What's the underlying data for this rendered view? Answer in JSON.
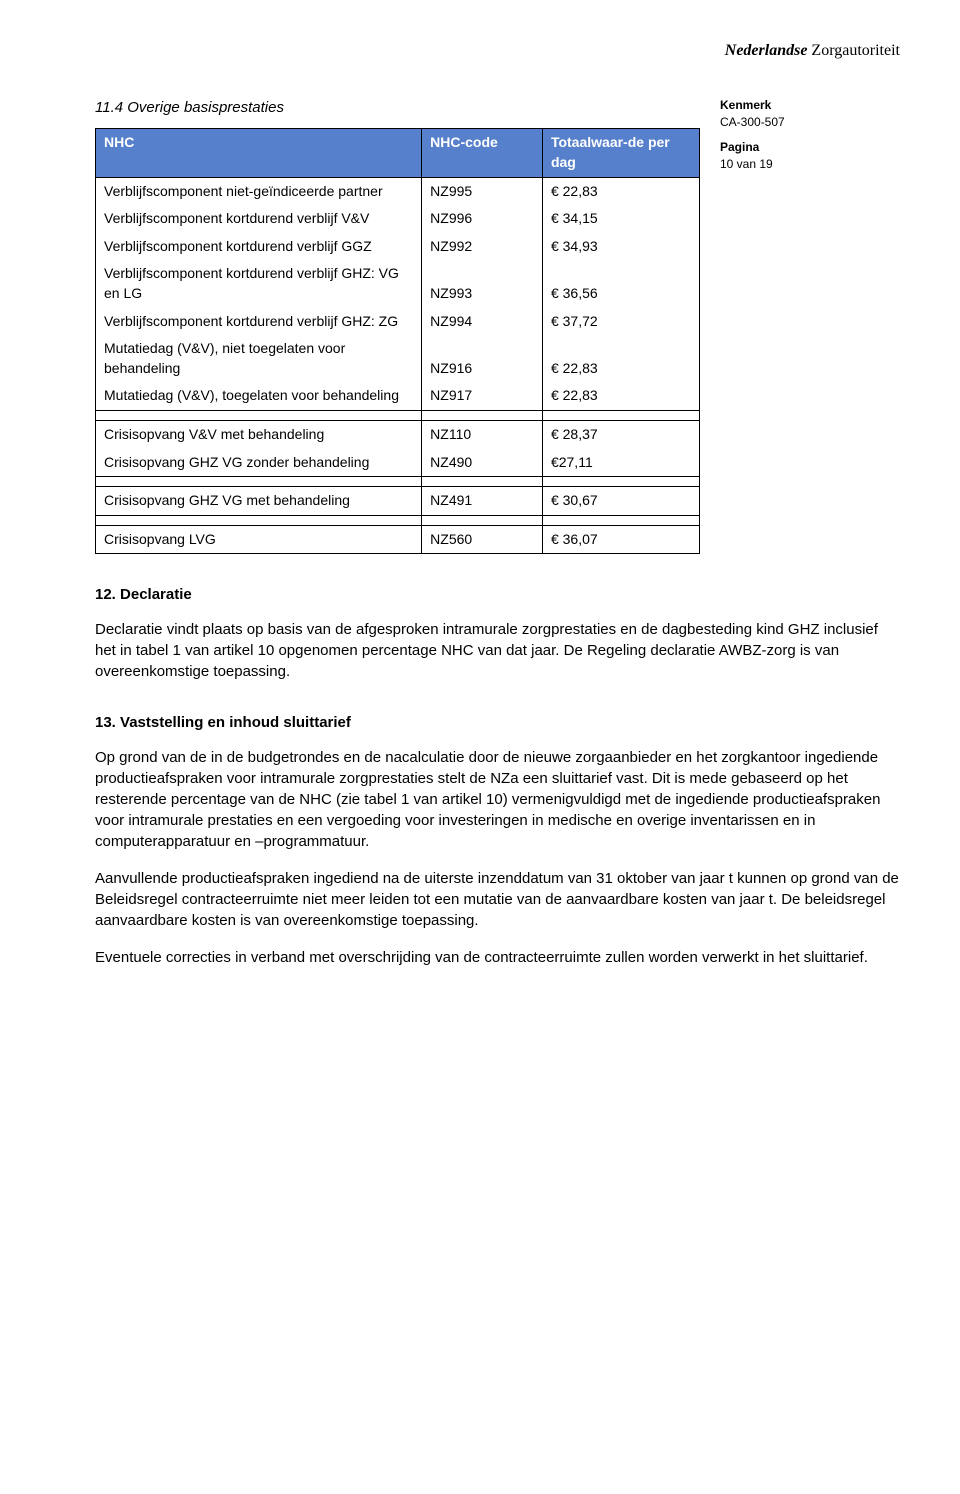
{
  "logo": {
    "bold": "Nederlandse",
    "plain": " Zorgautoriteit"
  },
  "sectionTitle": "11.4 Overige basisprestaties",
  "meta": {
    "kenmerkLabel": "Kenmerk",
    "kenmerkValue": "CA-300-507",
    "paginaLabel": "Pagina",
    "paginaValue": "10 van 19"
  },
  "table": {
    "headerBg": "#5680cb",
    "headerFg": "#ffffff",
    "headers": [
      "NHC",
      "NHC-code",
      "Totaalwaar-de per dag"
    ],
    "blocks": [
      [
        {
          "label": "Verblijfscomponent niet-geïndiceerde partner",
          "code": "NZ995",
          "value": "€ 22,83"
        },
        {
          "label": "Verblijfscomponent kortdurend verblijf V&V",
          "code": "NZ996",
          "value": "€ 34,15"
        },
        {
          "label": "Verblijfscomponent kortdurend verblijf GGZ",
          "code": "NZ992",
          "value": "€ 34,93"
        },
        {
          "label": "Verblijfscomponent kortdurend verblijf GHZ: VG en LG",
          "code": "NZ993",
          "value": "€ 36,56"
        },
        {
          "label": "Verblijfscomponent kortdurend verblijf GHZ: ZG",
          "code": "NZ994",
          "value": "€ 37,72"
        },
        {
          "label": "Mutatiedag (V&V), niet toegelaten voor behandeling",
          "code": "NZ916",
          "value": "€ 22,83"
        },
        {
          "label": "Mutatiedag (V&V), toegelaten voor behandeling",
          "code": "NZ917",
          "value": "€ 22,83"
        }
      ],
      [
        {
          "label": "Crisisopvang V&V met behandeling",
          "code": "NZ110",
          "value": "€ 28,37"
        },
        {
          "label": "Crisisopvang GHZ VG zonder behandeling",
          "code": "NZ490",
          "value": "€27,11"
        }
      ],
      [
        {
          "label": "Crisisopvang GHZ VG met behandeling",
          "code": "NZ491",
          "value": "€ 30,67"
        }
      ],
      [
        {
          "label": "Crisisopvang LVG",
          "code": "NZ560",
          "value": "€ 36,07"
        }
      ]
    ]
  },
  "sections": [
    {
      "title": "12. Declaratie",
      "paragraphs": [
        "Declaratie vindt plaats op basis van de afgesproken intramurale zorgprestaties en de dagbesteding kind GHZ inclusief het in tabel 1 van artikel 10 opgenomen percentage NHC van dat jaar. De Regeling declaratie AWBZ-zorg is van overeenkomstige toepassing."
      ]
    },
    {
      "title": "13. Vaststelling en inhoud sluittarief",
      "paragraphs": [
        "Op grond van de in de budgetrondes en de nacalculatie door de nieuwe zorgaanbieder en het zorgkantoor ingediende productieafspraken voor intramurale zorgprestaties stelt de NZa een sluittarief vast. Dit is mede gebaseerd op het resterende percentage van de NHC (zie tabel 1 van artikel 10) vermenigvuldigd met de ingediende productieafspraken voor intramurale prestaties en een vergoeding voor investeringen in medische en overige inventarissen en in computerapparatuur en –programmatuur.",
        "Aanvullende productieafspraken ingediend na de uiterste inzenddatum van 31 oktober van jaar t kunnen op grond van de Beleidsregel contracteerruimte niet meer leiden tot een mutatie van de aanvaardbare kosten van jaar t. De beleidsregel aanvaardbare kosten is van overeenkomstige toepassing.",
        "Eventuele correcties in verband met overschrijding van de contracteerruimte zullen worden verwerkt in het sluittarief."
      ]
    }
  ]
}
